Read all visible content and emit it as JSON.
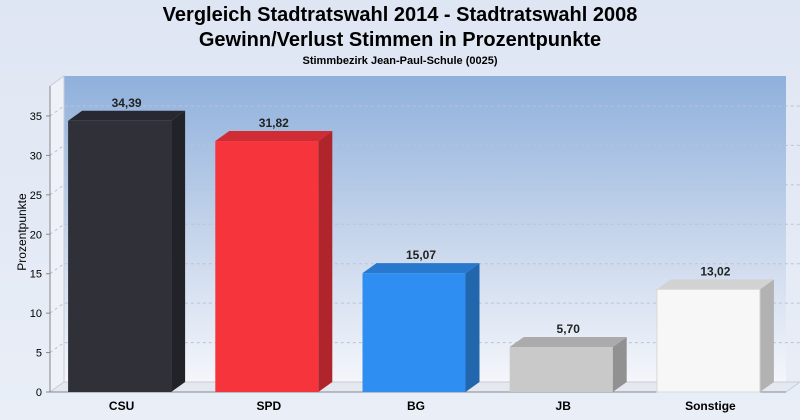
{
  "chart_data": {
    "type": "bar",
    "title": "Vergleich Stadtratswahl 2014 - Stadtratswahl 2008",
    "subtitle": "Gewinn/Verlust Stimmen in Prozentpunkte",
    "caption": "Stimmbezirk Jean-Paul-Schule (0025)",
    "xlabel": "",
    "ylabel": "Prozentpunkte",
    "ylim": [
      0,
      35
    ],
    "yticks": [
      0,
      5,
      10,
      15,
      20,
      25,
      30,
      35
    ],
    "categories": [
      "CSU",
      "SPD",
      "BG",
      "JB",
      "Sonstige"
    ],
    "values": [
      34.39,
      31.82,
      15.07,
      5.7,
      13.02
    ],
    "value_labels": [
      "34,39",
      "31,82",
      "15,07",
      "5,70",
      "13,02"
    ],
    "colors": [
      "#2f3038",
      "#f5343c",
      "#2f8ef2",
      "#c9c9c9",
      "#f7f7f7"
    ],
    "grid": true,
    "legend": "none",
    "style": "3d"
  }
}
